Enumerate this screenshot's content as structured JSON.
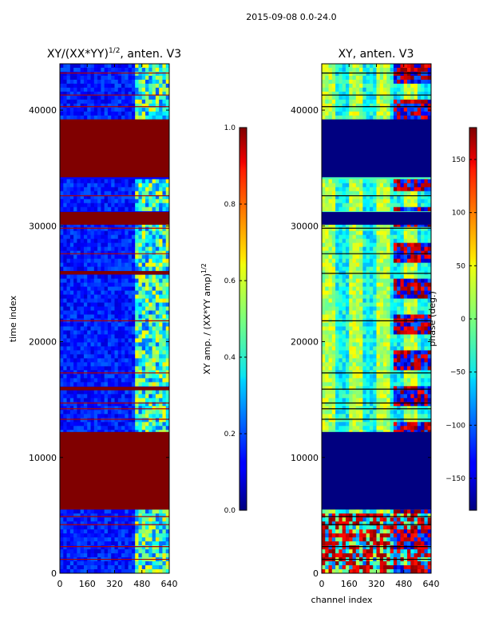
{
  "figure": {
    "suptitle": "2015-09-08 0.0-24.0"
  },
  "chart_data": [
    {
      "type": "heatmap",
      "title": "XY/(XX*YY)^1/2, anten. V3",
      "title_main": "XY/(XX*YY)",
      "title_sup": "1/2",
      "title_suffix": ", anten. V3",
      "xlabel": "",
      "ylabel": "time index",
      "xlim": [
        0,
        640
      ],
      "ylim": [
        0,
        44000
      ],
      "xticks": [
        0,
        160,
        320,
        480,
        640
      ],
      "yticks": [
        0,
        10000,
        20000,
        30000,
        40000
      ],
      "colormap": "jet",
      "colorbar": {
        "label": "XY amp. / (XX*YY amp)^1/2",
        "label_main": "XY amp. / (XX*YY amp)",
        "label_sup": "1/2",
        "range": [
          0.0,
          1.0
        ],
        "ticks": [
          "0.0",
          "0.2",
          "0.4",
          "0.6",
          "0.8",
          "1.0"
        ],
        "tick_values": [
          0.0,
          0.2,
          0.4,
          0.6,
          0.8,
          1.0
        ]
      },
      "saturated_bands": [
        {
          "y_start": 5500,
          "y_end": 12200,
          "value": 1.0
        },
        {
          "y_start": 15800,
          "y_end": 16100,
          "value": 1.0
        },
        {
          "y_start": 25800,
          "y_end": 26100,
          "value": 1.0
        },
        {
          "y_start": 30100,
          "y_end": 31200,
          "value": 1.0
        },
        {
          "y_start": 34200,
          "y_end": 39200,
          "value": 1.0
        }
      ],
      "flag_lines_y": [
        1200,
        2300,
        4200,
        4900,
        13300,
        14200,
        14700,
        17300,
        21800,
        27600,
        29800,
        32600,
        40300,
        41300,
        43200
      ],
      "active_channel_band": [
        430,
        640
      ]
    },
    {
      "type": "heatmap",
      "title": "XY, anten. V3",
      "xlabel": "channel index",
      "ylabel": "",
      "xlim": [
        0,
        640
      ],
      "ylim": [
        0,
        44000
      ],
      "xticks": [
        0,
        160,
        320,
        480,
        640
      ],
      "yticks": [
        0,
        10000,
        20000,
        30000,
        40000
      ],
      "colormap": "jet",
      "colorbar": {
        "label": "phase (deg.)",
        "range": [
          -180,
          180
        ],
        "ticks": [
          "−150",
          "−100",
          "−50",
          "0",
          "50",
          "100",
          "150"
        ],
        "tick_values": [
          -150,
          -100,
          -50,
          0,
          50,
          100,
          150
        ]
      },
      "blank_bands": [
        {
          "y_start": 5500,
          "y_end": 12200,
          "value": -180
        },
        {
          "y_start": 30100,
          "y_end": 31200,
          "value": -180
        },
        {
          "y_start": 34200,
          "y_end": 39200,
          "value": -180
        }
      ],
      "flag_lines_y": [
        1200,
        2300,
        4200,
        4900,
        13300,
        14200,
        14700,
        15900,
        17300,
        21800,
        25900,
        27600,
        29800,
        32600,
        40300,
        41300,
        43200
      ]
    }
  ]
}
